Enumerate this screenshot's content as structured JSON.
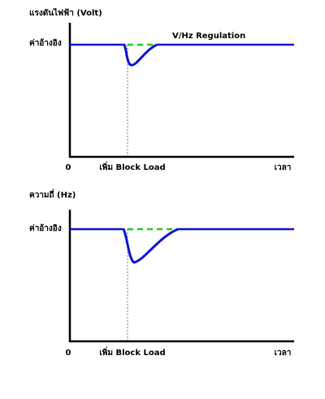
{
  "panels": [
    {
      "axis_title": "แรงดันไฟฟ้า (Volt)",
      "reference_label": "ค่าอ้างอิง",
      "annotation": "V/Hz Regulation",
      "origin": "0",
      "event_label": "เพิ่ม Block Load",
      "x_axis_label": "เวลา"
    },
    {
      "axis_title": "ความถี่ (Hz)",
      "reference_label": "ค่าอ้างอิง",
      "origin": "0",
      "event_label": "เพิ่ม Block Load",
      "x_axis_label": "เวลา"
    }
  ]
}
